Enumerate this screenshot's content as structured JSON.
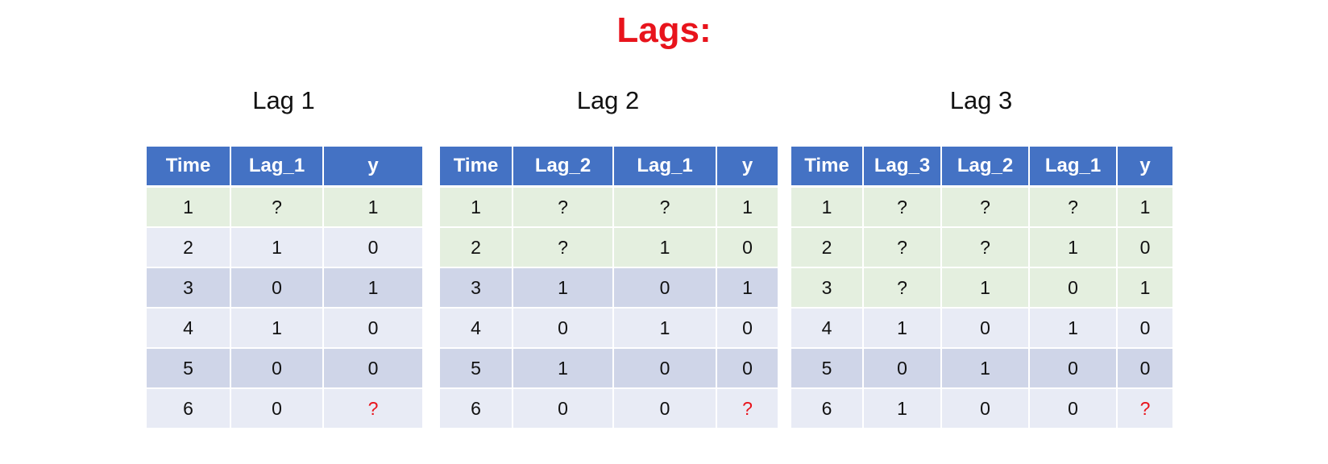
{
  "title": "Lags:",
  "colors": {
    "title": "#e8141c",
    "header": "#4472c4",
    "known_row": "#e4efdf",
    "row_light": "#e8ebf5",
    "row_dark": "#cfd5e8",
    "unknown_value": "#e8141c"
  },
  "panels": [
    {
      "label": "Lag 1",
      "headers": [
        "Time",
        "Lag_1",
        "y"
      ],
      "rows": [
        [
          "1",
          "?",
          "1"
        ],
        [
          "2",
          "1",
          "0"
        ],
        [
          "3",
          "0",
          "1"
        ],
        [
          "4",
          "1",
          "0"
        ],
        [
          "5",
          "0",
          "0"
        ],
        [
          "6",
          "0",
          "?"
        ]
      ]
    },
    {
      "label": "Lag 2",
      "headers": [
        "Time",
        "Lag_2",
        "Lag_1",
        "y"
      ],
      "rows": [
        [
          "1",
          "?",
          "?",
          "1"
        ],
        [
          "2",
          "?",
          "1",
          "0"
        ],
        [
          "3",
          "1",
          "0",
          "1"
        ],
        [
          "4",
          "0",
          "1",
          "0"
        ],
        [
          "5",
          "1",
          "0",
          "0"
        ],
        [
          "6",
          "0",
          "0",
          "?"
        ]
      ]
    },
    {
      "label": "Lag 3",
      "headers": [
        "Time",
        "Lag_3",
        "Lag_2",
        "Lag_1",
        "y"
      ],
      "rows": [
        [
          "1",
          "?",
          "?",
          "?",
          "1"
        ],
        [
          "2",
          "?",
          "?",
          "1",
          "0"
        ],
        [
          "3",
          "?",
          "1",
          "0",
          "1"
        ],
        [
          "4",
          "1",
          "0",
          "1",
          "0"
        ],
        [
          "5",
          "0",
          "1",
          "0",
          "0"
        ],
        [
          "6",
          "1",
          "0",
          "0",
          "?"
        ]
      ]
    }
  ]
}
